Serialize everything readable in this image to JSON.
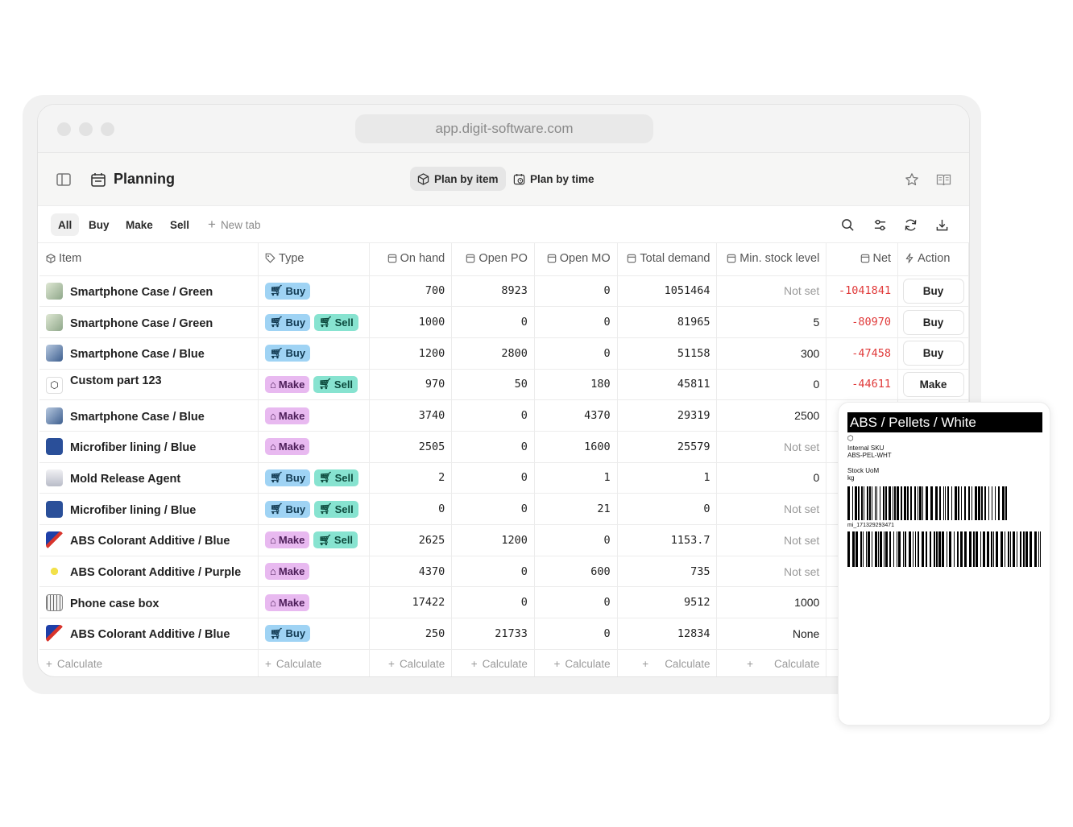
{
  "browser": {
    "url": "app.digit-software.com"
  },
  "app": {
    "title": "Planning",
    "view_toggle": {
      "plan_by_item": "Plan by item",
      "plan_by_time": "Plan by time"
    }
  },
  "tabs": {
    "all": "All",
    "buy": "Buy",
    "make": "Make",
    "sell": "Sell",
    "new_tab": "New tab"
  },
  "columns": {
    "item": "Item",
    "type": "Type",
    "on_hand": "On hand",
    "open_po": "Open PO",
    "open_mo": "Open MO",
    "total_demand": "Total demand",
    "min_stock": "Min. stock level",
    "net": "Net",
    "action": "Action"
  },
  "badges": {
    "buy": "Buy",
    "make": "Make",
    "sell": "Sell"
  },
  "rows": [
    {
      "item": "Smartphone Case / Green",
      "on_hand": "700",
      "open_po": "8923",
      "open_mo": "0",
      "total_demand": "1051464",
      "min_stock": "Not set",
      "net": "-1041841",
      "action": "Buy"
    },
    {
      "item": "Smartphone Case / Green",
      "on_hand": "1000",
      "open_po": "0",
      "open_mo": "0",
      "total_demand": "81965",
      "min_stock": "5",
      "net": "-80970",
      "action": "Buy"
    },
    {
      "item": "Smartphone Case / Blue",
      "on_hand": "1200",
      "open_po": "2800",
      "open_mo": "0",
      "total_demand": "51158",
      "min_stock": "300",
      "net": "-47458",
      "action": "Buy"
    },
    {
      "item": "Custom part 123",
      "on_hand": "970",
      "open_po": "50",
      "open_mo": "180",
      "total_demand": "45811",
      "min_stock": "0",
      "net": "-44611",
      "action": "Make"
    },
    {
      "item": "Smartphone Case / Blue",
      "on_hand": "3740",
      "open_po": "0",
      "open_mo": "4370",
      "total_demand": "29319",
      "min_stock": "2500"
    },
    {
      "item": "Microfiber lining / Blue",
      "on_hand": "2505",
      "open_po": "0",
      "open_mo": "1600",
      "total_demand": "25579",
      "min_stock": "Not set"
    },
    {
      "item": "Mold Release Agent",
      "on_hand": "2",
      "open_po": "0",
      "open_mo": "1",
      "total_demand": "1",
      "min_stock": "0"
    },
    {
      "item": "Microfiber lining / Blue",
      "on_hand": "0",
      "open_po": "0",
      "open_mo": "21",
      "total_demand": "0",
      "min_stock": "Not set"
    },
    {
      "item": "ABS Colorant Additive / Blue",
      "on_hand": "2625",
      "open_po": "1200",
      "open_mo": "0",
      "total_demand": "1153.7",
      "min_stock": "Not set"
    },
    {
      "item": "ABS Colorant Additive / Purple",
      "on_hand": "4370",
      "open_po": "0",
      "open_mo": "600",
      "total_demand": "735",
      "min_stock": "Not set"
    },
    {
      "item": "Phone case box",
      "on_hand": "17422",
      "open_po": "0",
      "open_mo": "0",
      "total_demand": "9512",
      "min_stock": "1000"
    },
    {
      "item": "ABS Colorant Additive / Blue",
      "on_hand": "250",
      "open_po": "21733",
      "open_mo": "0",
      "total_demand": "12834",
      "min_stock": "None"
    }
  ],
  "footer": {
    "calculate": "Calculate"
  },
  "label": {
    "title": "ABS / Pellets / White",
    "sku_label": "Internal SKU",
    "sku_value": "ABS-PEL-WHT",
    "uom_label": "Stock UoM",
    "uom_value": "kg",
    "barcode_text": "mi_171329293471"
  },
  "colors": {
    "negative": "#e03a3a",
    "buy_badge": "#9fd3f4",
    "make_badge": "#e8b9f0",
    "sell_badge": "#87e3d0"
  }
}
